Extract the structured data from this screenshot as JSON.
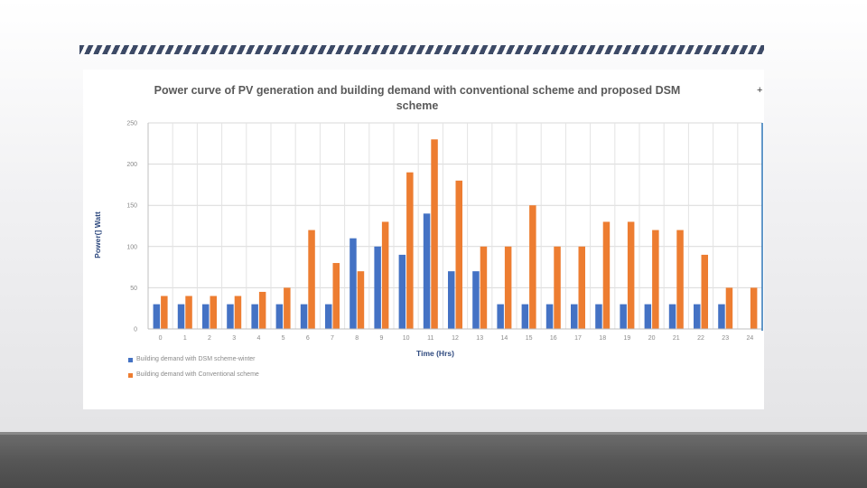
{
  "chart_data": {
    "type": "bar",
    "title": "Power curve of PV generation and building demand with conventional scheme and proposed DSM scheme",
    "xlabel": "Time (Hrs)",
    "ylabel": "Power(] Watt",
    "ylim": [
      0,
      250
    ],
    "yticks": [
      0,
      50,
      100,
      150,
      200,
      250
    ],
    "categories": [
      "0",
      "1",
      "2",
      "3",
      "4",
      "5",
      "6",
      "7",
      "8",
      "9",
      "10",
      "11",
      "12",
      "13",
      "14",
      "15",
      "16",
      "17",
      "18",
      "19",
      "20",
      "21",
      "22",
      "23",
      "24"
    ],
    "grid": true,
    "legend_position": "bottom-left",
    "series": [
      {
        "name": "Building demand with DSM scheme-winter",
        "color": "#4472C4",
        "values": [
          30,
          30,
          30,
          30,
          30,
          30,
          30,
          30,
          110,
          100,
          90,
          140,
          70,
          70,
          30,
          30,
          30,
          30,
          30,
          30,
          30,
          30,
          30,
          30,
          0
        ]
      },
      {
        "name": "Building demand with Conventional scheme",
        "color": "#ED7D31",
        "values": [
          40,
          40,
          40,
          40,
          45,
          50,
          120,
          80,
          70,
          130,
          190,
          230,
          180,
          100,
          100,
          150,
          100,
          100,
          130,
          130,
          120,
          120,
          90,
          50,
          50
        ]
      }
    ]
  },
  "decor": {
    "plus_symbol": "+"
  }
}
